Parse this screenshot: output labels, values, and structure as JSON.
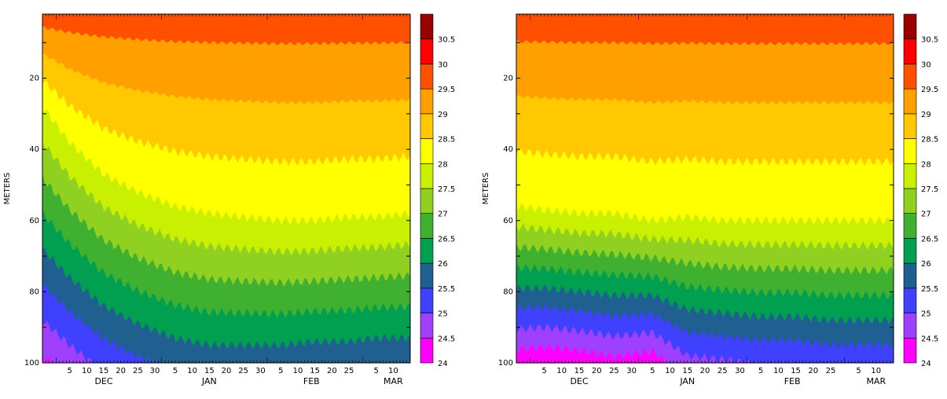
{
  "chart_data": [
    {
      "type": "heatmap",
      "title": "",
      "xlabel": "",
      "ylabel": "METERS",
      "y_axis": {
        "range": [
          2,
          100
        ],
        "inverted": true,
        "ticks": [
          20,
          40,
          60,
          80,
          100
        ],
        "tick_labels": [
          "20",
          "40",
          "60",
          "80",
          "100"
        ]
      },
      "x_axis": {
        "range": [
          "2000-11-27",
          "2001-03-15"
        ],
        "day_ticks": [
          "5",
          "10",
          "15",
          "20",
          "25",
          "30",
          "5",
          "10",
          "15",
          "20",
          "25",
          "30",
          "5",
          "10",
          "15",
          "20",
          "25",
          "5",
          "10"
        ],
        "month_labels": [
          "DEC",
          "JAN",
          "FEB",
          "MAR"
        ]
      },
      "colorbar": {
        "levels": [
          "24",
          "24.5",
          "25",
          "25.5",
          "26",
          "26.5",
          "27",
          "27.5",
          "28",
          "28.5",
          "29",
          "29.5",
          "30",
          "30.5"
        ],
        "colors": [
          "#ff00ff",
          "#a040ff",
          "#4040ff",
          "#206090",
          "#00a050",
          "#40b030",
          "#90d020",
          "#c8f000",
          "#ffff00",
          "#ffc800",
          "#ffa000",
          "#ff5000",
          "#ff0000",
          "#9a0000"
        ]
      },
      "series": [
        {
          "name": "",
          "values_description_isotherm_depths": {
            "dates": [
              "2000-11-27",
              "2000-12-05",
              "2000-12-15",
              "2000-12-25",
              "2001-01-05",
              "2001-01-15",
              "2001-01-25",
              "2001-02-05",
              "2001-02-15",
              "2001-02-25",
              "2001-03-05",
              "2001-03-15"
            ],
            "depth_28C": [
              28,
              38,
              47,
              52,
              56,
              58,
              59,
              60,
              60,
              59,
              59,
              58
            ],
            "depth_26C": [
              68,
              76,
              84,
              89,
              93,
              95,
              95,
              95,
              94,
              94,
              93,
              93
            ]
          }
        }
      ]
    },
    {
      "type": "heatmap",
      "title": "",
      "xlabel": "",
      "ylabel": "METERS",
      "y_axis": {
        "range": [
          2,
          100
        ],
        "inverted": true,
        "ticks": [
          20,
          40,
          60,
          80,
          100
        ],
        "tick_labels": [
          "20",
          "40",
          "60",
          "80",
          "100"
        ]
      },
      "x_axis": {
        "range": [
          "2000-11-27",
          "2001-03-15"
        ],
        "day_ticks": [
          "5",
          "10",
          "15",
          "20",
          "25",
          "30",
          "5",
          "10",
          "15",
          "20",
          "25",
          "30",
          "5",
          "10",
          "15",
          "20",
          "25",
          "5",
          "10"
        ],
        "month_labels": [
          "DEC",
          "JAN",
          "FEB",
          "MAR"
        ]
      },
      "colorbar": {
        "levels": [
          "24",
          "24.5",
          "25",
          "25.5",
          "26",
          "26.5",
          "27",
          "27.5",
          "28",
          "28.5",
          "29",
          "29.5",
          "30",
          "30.5"
        ],
        "colors": [
          "#ff00ff",
          "#a040ff",
          "#4040ff",
          "#206090",
          "#00a050",
          "#40b030",
          "#90d020",
          "#c8f000",
          "#ffff00",
          "#ffc800",
          "#ffa000",
          "#ff5000",
          "#ff0000",
          "#9a0000"
        ]
      },
      "series": [
        {
          "name": "",
          "values_description_isotherm_depths": {
            "dates": [
              "2000-11-27",
              "2000-12-05",
              "2000-12-15",
              "2000-12-25",
              "2001-01-05",
              "2001-01-15",
              "2001-01-25",
              "2001-02-05",
              "2001-02-15",
              "2001-02-25",
              "2001-03-05",
              "2001-03-15"
            ],
            "depth_28C": [
              56,
              57,
              58,
              58,
              60,
              59,
              60,
              60,
              60,
              60,
              60,
              60
            ],
            "depth_26C": [
              79,
              79,
              80,
              81,
              81,
              85,
              86,
              87,
              87,
              88,
              88,
              88
            ]
          }
        }
      ]
    }
  ]
}
